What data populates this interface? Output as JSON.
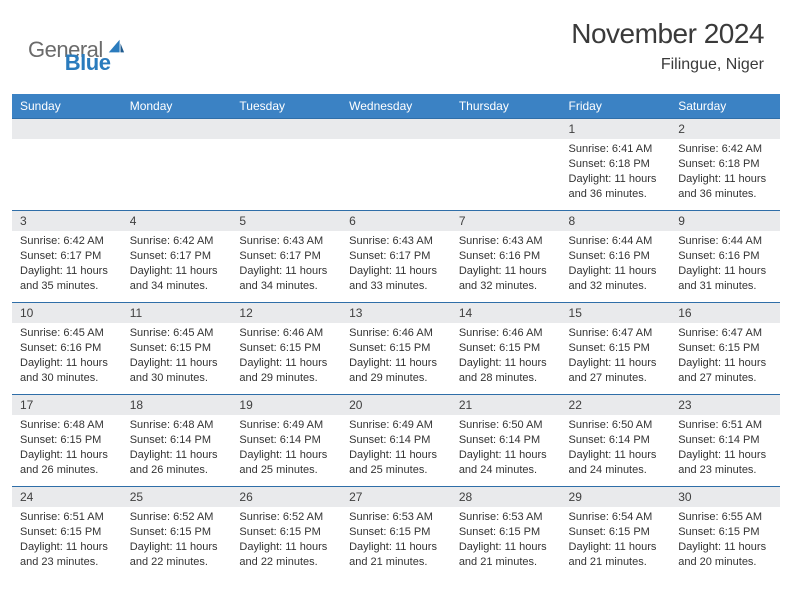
{
  "brand": {
    "general": "General",
    "blue": "Blue"
  },
  "title": "November 2024",
  "location": "Filingue, Niger",
  "colors": {
    "header_bg": "#3b82c4",
    "header_text": "#ffffff",
    "daynum_bg": "#e9eaec",
    "border": "#2f6ea8",
    "body_text": "#333333",
    "title_text": "#3a3a3a",
    "logo_gray": "#6b6b6b",
    "logo_blue": "#2a7bbd"
  },
  "days": [
    "Sunday",
    "Monday",
    "Tuesday",
    "Wednesday",
    "Thursday",
    "Friday",
    "Saturday"
  ],
  "weeks": [
    [
      null,
      null,
      null,
      null,
      null,
      {
        "n": "1",
        "sr": "6:41 AM",
        "ss": "6:18 PM",
        "dl": "11 hours and 36 minutes."
      },
      {
        "n": "2",
        "sr": "6:42 AM",
        "ss": "6:18 PM",
        "dl": "11 hours and 36 minutes."
      }
    ],
    [
      {
        "n": "3",
        "sr": "6:42 AM",
        "ss": "6:17 PM",
        "dl": "11 hours and 35 minutes."
      },
      {
        "n": "4",
        "sr": "6:42 AM",
        "ss": "6:17 PM",
        "dl": "11 hours and 34 minutes."
      },
      {
        "n": "5",
        "sr": "6:43 AM",
        "ss": "6:17 PM",
        "dl": "11 hours and 34 minutes."
      },
      {
        "n": "6",
        "sr": "6:43 AM",
        "ss": "6:17 PM",
        "dl": "11 hours and 33 minutes."
      },
      {
        "n": "7",
        "sr": "6:43 AM",
        "ss": "6:16 PM",
        "dl": "11 hours and 32 minutes."
      },
      {
        "n": "8",
        "sr": "6:44 AM",
        "ss": "6:16 PM",
        "dl": "11 hours and 32 minutes."
      },
      {
        "n": "9",
        "sr": "6:44 AM",
        "ss": "6:16 PM",
        "dl": "11 hours and 31 minutes."
      }
    ],
    [
      {
        "n": "10",
        "sr": "6:45 AM",
        "ss": "6:16 PM",
        "dl": "11 hours and 30 minutes."
      },
      {
        "n": "11",
        "sr": "6:45 AM",
        "ss": "6:15 PM",
        "dl": "11 hours and 30 minutes."
      },
      {
        "n": "12",
        "sr": "6:46 AM",
        "ss": "6:15 PM",
        "dl": "11 hours and 29 minutes."
      },
      {
        "n": "13",
        "sr": "6:46 AM",
        "ss": "6:15 PM",
        "dl": "11 hours and 29 minutes."
      },
      {
        "n": "14",
        "sr": "6:46 AM",
        "ss": "6:15 PM",
        "dl": "11 hours and 28 minutes."
      },
      {
        "n": "15",
        "sr": "6:47 AM",
        "ss": "6:15 PM",
        "dl": "11 hours and 27 minutes."
      },
      {
        "n": "16",
        "sr": "6:47 AM",
        "ss": "6:15 PM",
        "dl": "11 hours and 27 minutes."
      }
    ],
    [
      {
        "n": "17",
        "sr": "6:48 AM",
        "ss": "6:15 PM",
        "dl": "11 hours and 26 minutes."
      },
      {
        "n": "18",
        "sr": "6:48 AM",
        "ss": "6:14 PM",
        "dl": "11 hours and 26 minutes."
      },
      {
        "n": "19",
        "sr": "6:49 AM",
        "ss": "6:14 PM",
        "dl": "11 hours and 25 minutes."
      },
      {
        "n": "20",
        "sr": "6:49 AM",
        "ss": "6:14 PM",
        "dl": "11 hours and 25 minutes."
      },
      {
        "n": "21",
        "sr": "6:50 AM",
        "ss": "6:14 PM",
        "dl": "11 hours and 24 minutes."
      },
      {
        "n": "22",
        "sr": "6:50 AM",
        "ss": "6:14 PM",
        "dl": "11 hours and 24 minutes."
      },
      {
        "n": "23",
        "sr": "6:51 AM",
        "ss": "6:14 PM",
        "dl": "11 hours and 23 minutes."
      }
    ],
    [
      {
        "n": "24",
        "sr": "6:51 AM",
        "ss": "6:15 PM",
        "dl": "11 hours and 23 minutes."
      },
      {
        "n": "25",
        "sr": "6:52 AM",
        "ss": "6:15 PM",
        "dl": "11 hours and 22 minutes."
      },
      {
        "n": "26",
        "sr": "6:52 AM",
        "ss": "6:15 PM",
        "dl": "11 hours and 22 minutes."
      },
      {
        "n": "27",
        "sr": "6:53 AM",
        "ss": "6:15 PM",
        "dl": "11 hours and 21 minutes."
      },
      {
        "n": "28",
        "sr": "6:53 AM",
        "ss": "6:15 PM",
        "dl": "11 hours and 21 minutes."
      },
      {
        "n": "29",
        "sr": "6:54 AM",
        "ss": "6:15 PM",
        "dl": "11 hours and 21 minutes."
      },
      {
        "n": "30",
        "sr": "6:55 AM",
        "ss": "6:15 PM",
        "dl": "11 hours and 20 minutes."
      }
    ]
  ],
  "labels": {
    "sunrise": "Sunrise:",
    "sunset": "Sunset:",
    "daylight": "Daylight:"
  }
}
